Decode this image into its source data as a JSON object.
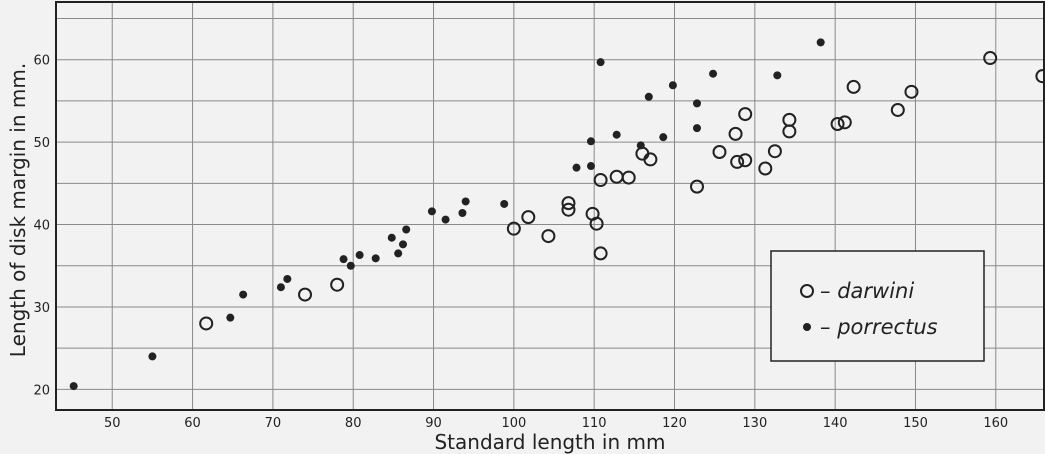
{
  "chart_data": {
    "type": "scatter",
    "title": "",
    "xlabel": "Standard length in mm",
    "ylabel": "Length of disk margin in mm.",
    "xlim": [
      43,
      166
    ],
    "ylim": [
      17.5,
      67
    ],
    "x_ticks": [
      50,
      60,
      70,
      80,
      90,
      100,
      110,
      120,
      130,
      140,
      150,
      160
    ],
    "y_ticks": [
      20,
      30,
      40,
      50,
      60
    ],
    "x_tick_labels": [
      "50",
      "60",
      "70",
      "80",
      "90",
      "100",
      "110",
      "120",
      "130",
      "140",
      "150",
      "160"
    ],
    "y_tick_labels": [
      "20",
      "30",
      "40",
      "50",
      "60"
    ],
    "grid": true,
    "legend_position": "bottom-right",
    "series": [
      {
        "name": "darwini",
        "marker": "open-circle",
        "points": [
          [
            61.7,
            28.0
          ],
          [
            74,
            31.5
          ],
          [
            78,
            32.7
          ],
          [
            100,
            39.5
          ],
          [
            101.8,
            40.9
          ],
          [
            104.3,
            38.6
          ],
          [
            106.8,
            42.6
          ],
          [
            106.8,
            41.8
          ],
          [
            109.8,
            41.3
          ],
          [
            110.3,
            40.1
          ],
          [
            110.8,
            45.4
          ],
          [
            110.8,
            36.5
          ],
          [
            112.8,
            45.8
          ],
          [
            114.3,
            45.7
          ],
          [
            116,
            48.6
          ],
          [
            117,
            47.9
          ],
          [
            122.8,
            44.6
          ],
          [
            125.6,
            48.8
          ],
          [
            127.6,
            51.0
          ],
          [
            127.8,
            47.6
          ],
          [
            128.8,
            53.4
          ],
          [
            128.8,
            47.8
          ],
          [
            131.3,
            46.8
          ],
          [
            132.5,
            48.9
          ],
          [
            134.3,
            52.7
          ],
          [
            134.3,
            51.3
          ],
          [
            140.3,
            52.2
          ],
          [
            141.2,
            52.4
          ],
          [
            142.3,
            56.7
          ],
          [
            147.8,
            53.9
          ],
          [
            149.5,
            56.1
          ],
          [
            159.3,
            60.2
          ],
          [
            165.8,
            58.0
          ]
        ]
      },
      {
        "name": "porrectus",
        "marker": "filled-dot",
        "points": [
          [
            45.2,
            20.4
          ],
          [
            55,
            24.0
          ],
          [
            64.7,
            28.7
          ],
          [
            66.3,
            31.5
          ],
          [
            71,
            32.4
          ],
          [
            71.8,
            33.4
          ],
          [
            78.8,
            35.8
          ],
          [
            79.7,
            35.0
          ],
          [
            80.8,
            36.3
          ],
          [
            82.8,
            35.9
          ],
          [
            84.8,
            38.4
          ],
          [
            85.6,
            36.5
          ],
          [
            86.2,
            37.6
          ],
          [
            86.6,
            39.4
          ],
          [
            89.8,
            41.6
          ],
          [
            91.5,
            40.6
          ],
          [
            93.6,
            41.4
          ],
          [
            94,
            42.8
          ],
          [
            98.8,
            42.5
          ],
          [
            107.8,
            46.9
          ],
          [
            109.6,
            50.1
          ],
          [
            109.6,
            47.1
          ],
          [
            110.8,
            59.7
          ],
          [
            112.8,
            50.9
          ],
          [
            115.8,
            49.6
          ],
          [
            116.8,
            55.5
          ],
          [
            118.6,
            50.6
          ],
          [
            119.8,
            56.9
          ],
          [
            122.8,
            54.7
          ],
          [
            122.8,
            51.7
          ],
          [
            124.8,
            58.3
          ],
          [
            132.8,
            58.1
          ],
          [
            138.2,
            62.1
          ]
        ]
      }
    ],
    "legend": [
      {
        "label": "darwini",
        "marker": "open-circle"
      },
      {
        "label": "porrectus",
        "marker": "filled-dot"
      }
    ]
  }
}
